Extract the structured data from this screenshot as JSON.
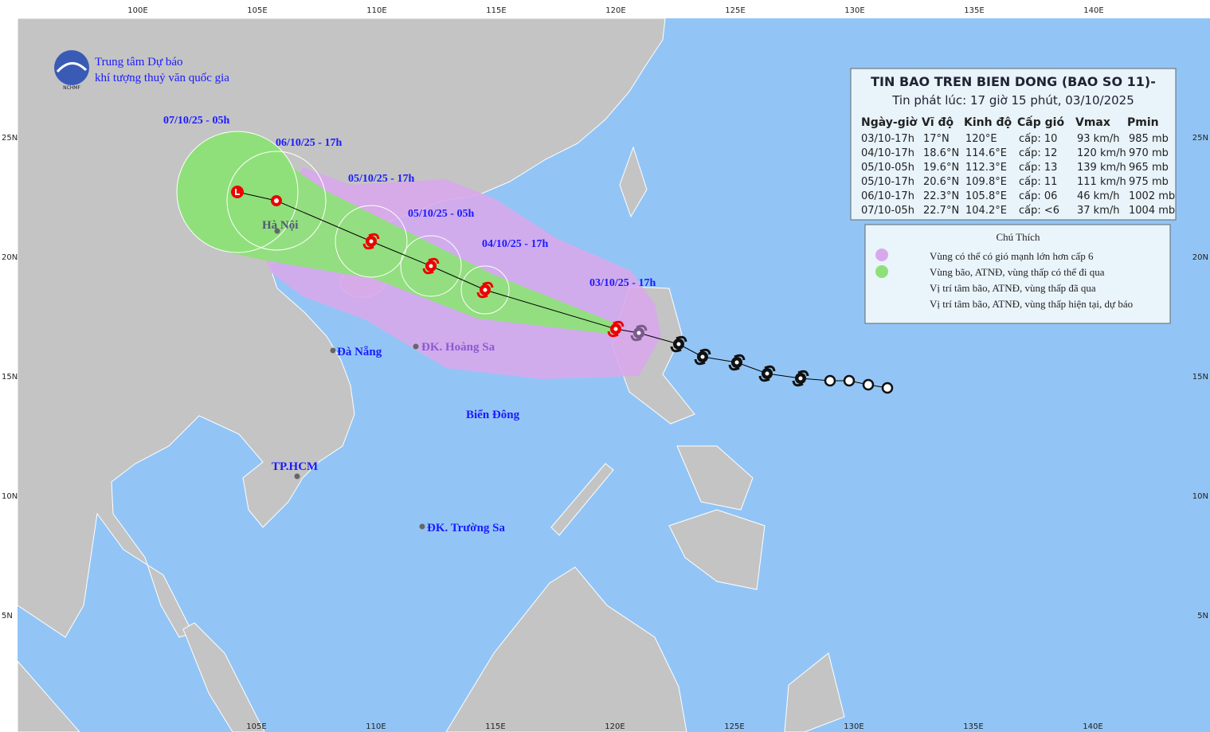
{
  "header": {
    "org_line1": "Trung tâm Dự báo",
    "org_line2": "khí tượng thuỷ văn quốc gia",
    "logo_text": "NCHMF"
  },
  "bulletin": {
    "title": "TIN BAO TREN BIEN DONG (BAO SO 11)-",
    "issued": "Tin phát lúc: 17 giờ 15 phút, 03/10/2025",
    "columns": [
      "Ngày-giờ",
      "Vĩ độ",
      "Kinh độ",
      "Cấp gió",
      "Vmax",
      "Pmin"
    ],
    "rows": [
      [
        "03/10-17h",
        "17°N",
        "120°E",
        "cấp: 10",
        "93 km/h",
        "985 mb"
      ],
      [
        "04/10-17h",
        "18.6°N",
        "114.6°E",
        "cấp: 12",
        "120 km/h",
        "970 mb"
      ],
      [
        "05/10-05h",
        "19.6°N",
        "112.3°E",
        "cấp: 13",
        "139 km/h",
        "965 mb"
      ],
      [
        "05/10-17h",
        "20.6°N",
        "109.8°E",
        "cấp: 11",
        "111 km/h",
        "975 mb"
      ],
      [
        "06/10-17h",
        "22.3°N",
        "105.8°E",
        "cấp: 06",
        "46 km/h",
        "1002 mb"
      ],
      [
        "07/10-05h",
        "22.7°N",
        "104.2°E",
        "cấp: <6",
        "37 km/h",
        "1004 mb"
      ]
    ]
  },
  "legend": {
    "title": "Chú Thích",
    "items": [
      "Vùng có thể có gió mạnh lớn hơn cấp 6",
      "Vùng bão, ATNĐ, vùng thấp có thể đi qua",
      "Vị trí tâm bão, ATNĐ, vùng thấp đã qua",
      "Vị trí tâm bão, ATNĐ, vùng thấp hiện tại, dự báo"
    ]
  },
  "track_labels": [
    "07/10/25 - 05h",
    "06/10/25 - 17h",
    "05/10/25 - 17h",
    "05/10/25 - 05h",
    "04/10/25 - 17h",
    "03/10/25 - 17h"
  ],
  "places": [
    "Hà Nội",
    "Đà Nẵng",
    "ĐK. Hoàng Sa",
    "Biển Đông",
    "TP.HCM",
    "ĐK. Trường Sa"
  ],
  "axes": {
    "top": [
      "100E",
      "105E",
      "110E",
      "115E",
      "120E",
      "125E",
      "130E",
      "135E",
      "140E"
    ],
    "bottom": [
      "105E",
      "110E",
      "115E",
      "120E",
      "125E",
      "130E",
      "135E",
      "140E"
    ],
    "left": [
      "25N",
      "20N",
      "15N",
      "10N",
      "5N"
    ],
    "right": [
      "25N",
      "20N",
      "15N",
      "10N",
      "5N"
    ]
  }
}
